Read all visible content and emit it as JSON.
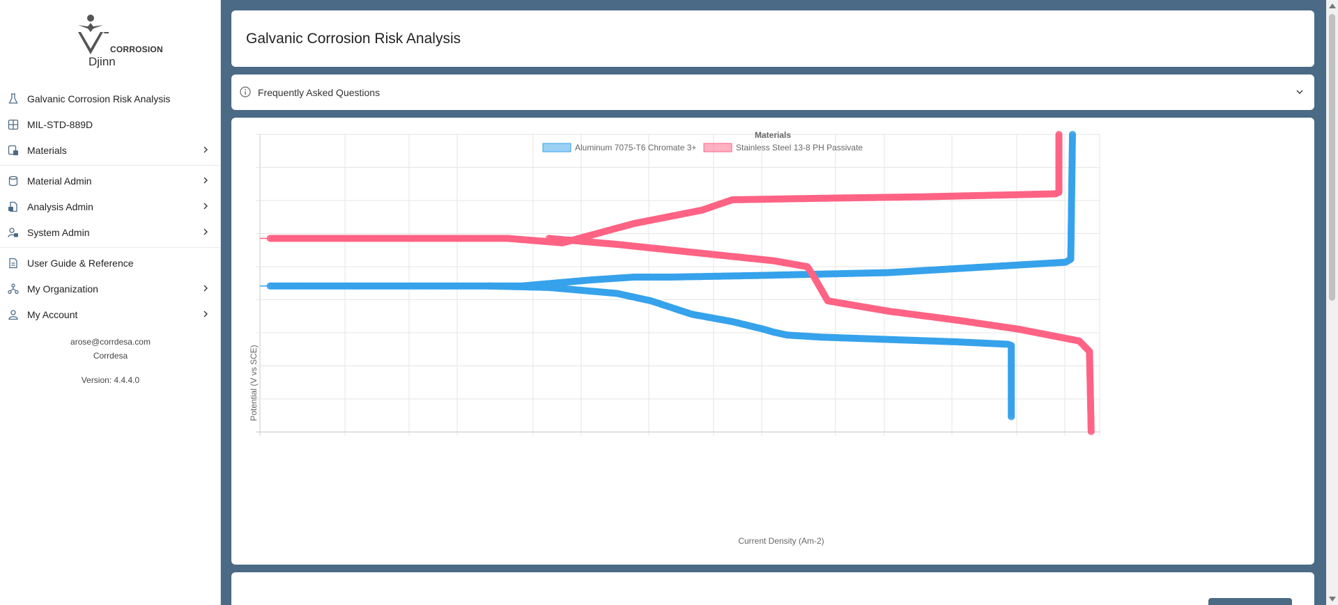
{
  "app": {
    "logo_word": "CORROSION",
    "logo_sub": "Djinn"
  },
  "sidebar": {
    "items": [
      {
        "label": "Galvanic Corrosion Risk Analysis",
        "icon": "flask-icon",
        "chevron": false
      },
      {
        "label": "MIL-STD-889D",
        "icon": "table-icon",
        "chevron": false
      },
      {
        "label": "Materials",
        "icon": "materials-icon",
        "chevron": true
      },
      {
        "label": "Material Admin",
        "icon": "database-icon",
        "chevron": true
      },
      {
        "label": "Analysis Admin",
        "icon": "file-lock-icon",
        "chevron": true
      },
      {
        "label": "System Admin",
        "icon": "user-lock-icon",
        "chevron": true
      },
      {
        "label": "User Guide & Reference",
        "icon": "document-icon",
        "chevron": false
      },
      {
        "label": "My Organization",
        "icon": "organization-icon",
        "chevron": true
      },
      {
        "label": "My Account",
        "icon": "user-icon",
        "chevron": true
      }
    ],
    "user_email": "arose@corrdesa.com",
    "org_name": "Corrdesa",
    "version": "Version: 4.4.4.0"
  },
  "page": {
    "title": "Galvanic Corrosion Risk Analysis",
    "faq_label": "Frequently Asked Questions"
  },
  "colors": {
    "accent": "#4a6a85",
    "series_aluminum": "#36a2eb",
    "series_steel": "#ff6384"
  },
  "chart_data": {
    "type": "scatter",
    "title": "Materials",
    "xlabel": "Current Density (Am-2)",
    "ylabel": "Potential (V vs SCE)",
    "x_scale": "log",
    "tick_labels_shown": false,
    "legend": "top",
    "grid": true,
    "series": [
      {
        "name": "Aluminum 7075-T6 Chromate 3+",
        "color": "#36a2eb",
        "anodic": [
          [
            -14.2,
            0.49
          ],
          [
            -10.6,
            0.49
          ],
          [
            -9.2,
            0.49
          ],
          [
            -8.4,
            0.49
          ],
          [
            -7.8,
            0.49
          ],
          [
            -6.8,
            0.49
          ],
          [
            -4.8,
            0.51
          ],
          [
            -3.5,
            0.52
          ],
          [
            -2.4,
            0.52
          ],
          [
            0,
            0.525
          ],
          [
            4,
            0.535
          ],
          [
            9.2,
            0.57
          ],
          [
            9.35,
            0.58
          ],
          [
            9.4,
            1.0
          ]
        ],
        "cathodic": [
          [
            -7.8,
            0.49
          ],
          [
            -6,
            0.485
          ],
          [
            -4,
            0.465
          ],
          [
            -3.0,
            0.44
          ],
          [
            -1.8,
            0.395
          ],
          [
            -0.6,
            0.37
          ],
          [
            0.3,
            0.345
          ],
          [
            0.6,
            0.335
          ],
          [
            1.0,
            0.325
          ],
          [
            2.0,
            0.318
          ],
          [
            4,
            0.31
          ],
          [
            6,
            0.302
          ],
          [
            7.5,
            0.294
          ],
          [
            7.6,
            0.29
          ],
          [
            7.6,
            0.05
          ]
        ]
      },
      {
        "name": "Stainless Steel 13-8 PH Passivate",
        "color": "#ff6384",
        "anodic": [
          [
            -14.2,
            0.65
          ],
          [
            -12.5,
            0.65
          ],
          [
            -10.6,
            0.65
          ],
          [
            -9.2,
            0.65
          ],
          [
            -8.4,
            0.65
          ],
          [
            -7.2,
            0.65
          ],
          [
            -5.6,
            0.635
          ],
          [
            -3.5,
            0.7
          ],
          [
            -1.5,
            0.745
          ],
          [
            -0.6,
            0.78
          ],
          [
            2,
            0.785
          ],
          [
            5,
            0.79
          ],
          [
            8.9,
            0.8
          ],
          [
            9.0,
            0.805
          ],
          [
            9.0,
            1.0
          ]
        ],
        "cathodic": [
          [
            -6,
            0.65
          ],
          [
            -4,
            0.63
          ],
          [
            -1.5,
            0.6
          ],
          [
            0.6,
            0.575
          ],
          [
            1.6,
            0.555
          ],
          [
            1.8,
            0.52
          ],
          [
            2.2,
            0.44
          ],
          [
            4,
            0.405
          ],
          [
            6,
            0.375
          ],
          [
            7.8,
            0.345
          ],
          [
            9.6,
            0.305
          ],
          [
            9.9,
            0.27
          ],
          [
            9.95,
            0.0
          ]
        ]
      }
    ]
  }
}
